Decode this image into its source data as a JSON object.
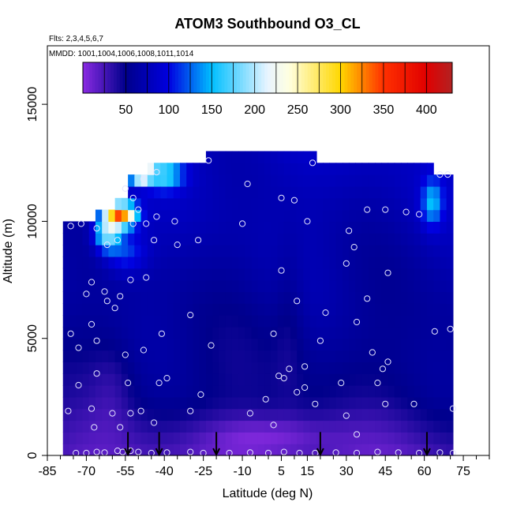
{
  "chart_data": {
    "type": "heatmap",
    "title": "ATOM3 Southbound O3_CL",
    "flights_label": "Flts: 2,3,4,5,6,7",
    "dates_label": "MMDD: 1001,1004,1006,1008,1011,1014",
    "xlabel": "Latitude (deg N)",
    "ylabel": "Altitude (m)",
    "xlim": [
      -85,
      85
    ],
    "ylim": [
      0,
      17500
    ],
    "x_ticks": [
      -85,
      -70,
      -55,
      -40,
      -25,
      -10,
      5,
      15,
      30,
      45,
      60,
      75
    ],
    "x_minor_step": 5,
    "y_ticks": [
      0,
      5000,
      10000,
      15000
    ],
    "colorbar": {
      "range": [
        0,
        430
      ],
      "ticks": [
        50,
        100,
        150,
        200,
        250,
        300,
        350,
        400
      ],
      "boundaries": [
        0,
        25,
        50,
        75,
        100,
        125,
        150,
        175,
        200,
        225,
        250,
        275,
        300,
        325,
        350,
        375,
        400,
        430
      ],
      "stops": [
        {
          "v": 0,
          "c": "#8a2be2"
        },
        {
          "v": 50,
          "c": "#00008b"
        },
        {
          "v": 100,
          "c": "#0000e0"
        },
        {
          "v": 150,
          "c": "#00bfff"
        },
        {
          "v": 215,
          "c": "#e8f4ff"
        },
        {
          "v": 240,
          "c": "#ffffe0"
        },
        {
          "v": 300,
          "c": "#ffd700"
        },
        {
          "v": 350,
          "c": "#ff3000"
        },
        {
          "v": 400,
          "c": "#e00000"
        },
        {
          "v": 430,
          "c": "#b22222"
        }
      ]
    },
    "domain": {
      "lat_min": -79,
      "lat_max": 71,
      "alt_max_south": 10300,
      "alt_max_north": 12600
    },
    "grid": {
      "lat_step": 2.5,
      "alt_step": 500
    },
    "features": [
      {
        "lat": -62,
        "alt": 9500,
        "w_lat": 5,
        "w_alt": 700,
        "amp": 120
      },
      {
        "lat": -57,
        "alt": 10300,
        "w_lat": 6,
        "w_alt": 500,
        "amp": 260
      },
      {
        "lat": -49,
        "alt": 12100,
        "w_lat": 4,
        "w_alt": 400,
        "amp": 240
      },
      {
        "lat": -40,
        "alt": 12000,
        "w_lat": 7,
        "w_alt": 600,
        "amp": 90
      },
      {
        "lat": -55,
        "alt": 8700,
        "w_lat": 8,
        "w_alt": 900,
        "amp": 50
      },
      {
        "lat": 63,
        "alt": 10800,
        "w_lat": 4,
        "w_alt": 1000,
        "amp": 70
      },
      {
        "lat": 0,
        "alt": 800,
        "w_lat": 25,
        "w_alt": 900,
        "amp": -30
      },
      {
        "lat": 8,
        "alt": 6000,
        "w_lat": 6,
        "w_alt": 3500,
        "amp": -15
      },
      {
        "lat": -60,
        "alt": 3000,
        "w_lat": 8,
        "w_alt": 2000,
        "amp": -15
      }
    ],
    "flight_profile_markers": [
      -54,
      -42,
      -20,
      20,
      61
    ],
    "observation_points": [
      [
        -74,
        100
      ],
      [
        -70,
        100
      ],
      [
        -66,
        150
      ],
      [
        -63,
        120
      ],
      [
        -58,
        200
      ],
      [
        -56,
        150
      ],
      [
        -53,
        200
      ],
      [
        -50,
        150
      ],
      [
        -45,
        100
      ],
      [
        -39,
        120
      ],
      [
        -30,
        150
      ],
      [
        -25,
        100
      ],
      [
        -15,
        100
      ],
      [
        -7,
        120
      ],
      [
        0,
        100
      ],
      [
        6,
        150
      ],
      [
        12,
        100
      ],
      [
        18,
        100
      ],
      [
        26,
        120
      ],
      [
        34,
        100
      ],
      [
        42,
        150
      ],
      [
        50,
        120
      ],
      [
        58,
        100
      ],
      [
        66,
        120
      ],
      [
        71,
        100
      ],
      [
        -76,
        5200
      ],
      [
        -73,
        4600
      ],
      [
        -68,
        5600
      ],
      [
        -66,
        4900
      ],
      [
        -62,
        6600
      ],
      [
        -59,
        6300
      ],
      [
        -55,
        4300
      ],
      [
        -48,
        4500
      ],
      [
        -41,
        5200
      ],
      [
        -22,
        4700
      ],
      [
        2,
        5200
      ],
      [
        8,
        3700
      ],
      [
        14,
        3800
      ],
      [
        20,
        4900
      ],
      [
        34,
        5700
      ],
      [
        40,
        4400
      ],
      [
        44,
        3700
      ],
      [
        46,
        4000
      ],
      [
        64,
        5300
      ],
      [
        70,
        5400
      ],
      [
        -68,
        7400
      ],
      [
        -70,
        6900
      ],
      [
        -63,
        7000
      ],
      [
        -57,
        6800
      ],
      [
        -53,
        7500
      ],
      [
        -47,
        7600
      ],
      [
        -44,
        9200
      ],
      [
        -35,
        9000
      ],
      [
        -30,
        6000
      ],
      [
        5,
        7900
      ],
      [
        11,
        6600
      ],
      [
        22,
        6100
      ],
      [
        30,
        8200
      ],
      [
        33,
        8900
      ],
      [
        38,
        6700
      ],
      [
        46,
        7800
      ],
      [
        -76,
        9800
      ],
      [
        -72,
        9900
      ],
      [
        -66,
        9700
      ],
      [
        -62,
        9000
      ],
      [
        -58,
        9200
      ],
      [
        -52,
        9900
      ],
      [
        -50,
        10500
      ],
      [
        -47,
        9900
      ],
      [
        -43,
        10200
      ],
      [
        -36,
        10000
      ],
      [
        -27,
        9200
      ],
      [
        -10,
        9900
      ],
      [
        5,
        11000
      ],
      [
        10,
        10900
      ],
      [
        15,
        10000
      ],
      [
        31,
        9600
      ],
      [
        38,
        10500
      ],
      [
        45,
        10500
      ],
      [
        53,
        10400
      ],
      [
        58,
        10300
      ],
      [
        -55,
        11400
      ],
      [
        -52,
        11000
      ],
      [
        -48,
        11800
      ],
      [
        -43,
        12100
      ],
      [
        -23,
        12600
      ],
      [
        -8,
        11600
      ],
      [
        17,
        12500
      ],
      [
        66,
        12000
      ],
      [
        69,
        12000
      ],
      [
        -73,
        3000
      ],
      [
        -68,
        2000
      ],
      [
        -66,
        3500
      ],
      [
        -60,
        1800
      ],
      [
        -54,
        3100
      ],
      [
        -49,
        1900
      ],
      [
        -42,
        3100
      ],
      [
        -39,
        3300
      ],
      [
        -30,
        1900
      ],
      [
        -26,
        2600
      ],
      [
        -7,
        1800
      ],
      [
        -1,
        2400
      ],
      [
        2,
        1300
      ],
      [
        6,
        3300
      ],
      [
        14,
        2900
      ],
      [
        18,
        2200
      ],
      [
        28,
        3100
      ],
      [
        30,
        1700
      ],
      [
        34,
        900
      ],
      [
        42,
        3100
      ],
      [
        45,
        2200
      ],
      [
        56,
        2200
      ],
      [
        71,
        2000
      ],
      [
        -77,
        1900
      ],
      [
        -57,
        1200
      ],
      [
        -44,
        1400
      ],
      [
        -67,
        1200
      ],
      [
        11,
        2700
      ],
      [
        4,
        3400
      ],
      [
        -53,
        1800
      ]
    ]
  }
}
